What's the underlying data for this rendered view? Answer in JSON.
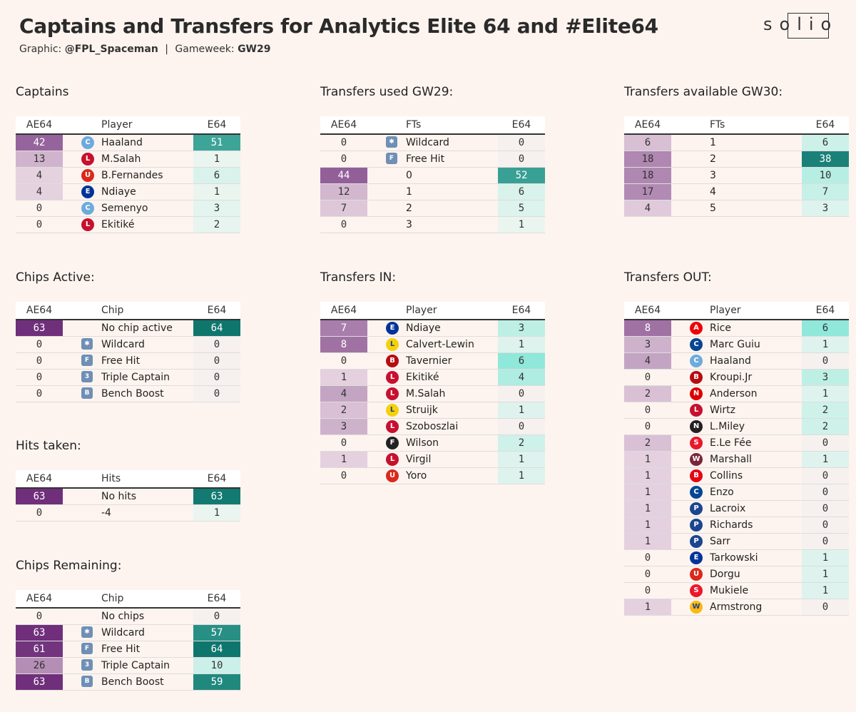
{
  "title": "Captains and Transfers for Analytics Elite 64 and #Elite64",
  "subtitle": {
    "graphic_label": "Graphic:",
    "author": "@FPL_Spaceman",
    "divider": "|",
    "gameweek_label": "Gameweek:",
    "gameweek": "GW29"
  },
  "logo": "solio",
  "colors": {
    "background": "#fdf4ef",
    "ae_scale_max": "#6e2d7a",
    "e_scale_max": "#0f766e"
  },
  "tables": {
    "captains": {
      "title": "Captains",
      "headers": [
        "AE64",
        "Player",
        "E64"
      ],
      "rows": [
        {
          "ae": "42",
          "label": "Haaland",
          "e": "51",
          "icon": "man-city-crest-icon"
        },
        {
          "ae": "13",
          "label": "M.Salah",
          "e": "1",
          "icon": "liverpool-crest-icon"
        },
        {
          "ae": "4",
          "label": "B.Fernandes",
          "e": "6",
          "icon": "man-utd-crest-icon"
        },
        {
          "ae": "4",
          "label": "Ndiaye",
          "e": "1",
          "icon": "everton-crest-icon"
        },
        {
          "ae": "0",
          "label": "Semenyo",
          "e": "3",
          "icon": "man-city-crest-icon"
        },
        {
          "ae": "0",
          "label": "Ekitiké",
          "e": "2",
          "icon": "liverpool-crest-icon"
        }
      ]
    },
    "transfers_used": {
      "title": "Transfers used GW29:",
      "headers": [
        "AE64",
        "FTs",
        "E64"
      ],
      "rows": [
        {
          "ae": "0",
          "label": "Wildcard",
          "e": "0",
          "icon": "wildcard-chip-icon"
        },
        {
          "ae": "0",
          "label": "Free Hit",
          "e": "0",
          "icon": "free-hit-chip-icon"
        },
        {
          "ae": "44",
          "label": "0",
          "e": "52",
          "icon": ""
        },
        {
          "ae": "12",
          "label": "1",
          "e": "6",
          "icon": ""
        },
        {
          "ae": "7",
          "label": "2",
          "e": "5",
          "icon": ""
        },
        {
          "ae": "0",
          "label": "3",
          "e": "1",
          "icon": ""
        }
      ]
    },
    "transfers_available": {
      "title": "Transfers available GW30:",
      "headers": [
        "AE64",
        "FTs",
        "E64"
      ],
      "rows": [
        {
          "ae": "6",
          "label": "1",
          "e": "6",
          "icon": ""
        },
        {
          "ae": "18",
          "label": "2",
          "e": "38",
          "icon": ""
        },
        {
          "ae": "18",
          "label": "3",
          "e": "10",
          "icon": ""
        },
        {
          "ae": "17",
          "label": "4",
          "e": "7",
          "icon": ""
        },
        {
          "ae": "4",
          "label": "5",
          "e": "3",
          "icon": ""
        }
      ]
    },
    "chips_active": {
      "title": "Chips Active:",
      "headers": [
        "AE64",
        "Chip",
        "E64"
      ],
      "rows": [
        {
          "ae": "63",
          "label": "No chip active",
          "e": "64",
          "icon": ""
        },
        {
          "ae": "0",
          "label": "Wildcard",
          "e": "0",
          "icon": "wildcard-chip-icon"
        },
        {
          "ae": "0",
          "label": "Free Hit",
          "e": "0",
          "icon": "free-hit-chip-icon"
        },
        {
          "ae": "0",
          "label": "Triple Captain",
          "e": "0",
          "icon": "triple-captain-chip-icon"
        },
        {
          "ae": "0",
          "label": "Bench Boost",
          "e": "0",
          "icon": "bench-boost-chip-icon"
        }
      ]
    },
    "hits_taken": {
      "title": "Hits taken:",
      "headers": [
        "AE64",
        "Hits",
        "E64"
      ],
      "rows": [
        {
          "ae": "63",
          "label": "No hits",
          "e": "63",
          "icon": ""
        },
        {
          "ae": "0",
          "label": "-4",
          "e": "1",
          "icon": ""
        }
      ]
    },
    "chips_remaining": {
      "title": "Chips Remaining:",
      "headers": [
        "AE64",
        "Chip",
        "E64"
      ],
      "rows": [
        {
          "ae": "0",
          "label": "No chips",
          "e": "0",
          "icon": ""
        },
        {
          "ae": "63",
          "label": "Wildcard",
          "e": "57",
          "icon": "wildcard-chip-icon"
        },
        {
          "ae": "61",
          "label": "Free Hit",
          "e": "64",
          "icon": "free-hit-chip-icon"
        },
        {
          "ae": "26",
          "label": "Triple Captain",
          "e": "10",
          "icon": "triple-captain-chip-icon"
        },
        {
          "ae": "63",
          "label": "Bench Boost",
          "e": "59",
          "icon": "bench-boost-chip-icon"
        }
      ]
    },
    "transfers_in": {
      "title": "Transfers IN:",
      "headers": [
        "AE64",
        "Player",
        "E64"
      ],
      "rows": [
        {
          "ae": "7",
          "label": "Ndiaye",
          "e": "3",
          "icon": "everton-crest-icon"
        },
        {
          "ae": "8",
          "label": "Calvert-Lewin",
          "e": "1",
          "icon": "leeds-crest-icon"
        },
        {
          "ae": "0",
          "label": "Tavernier",
          "e": "6",
          "icon": "bournemouth-crest-icon"
        },
        {
          "ae": "1",
          "label": "Ekitiké",
          "e": "4",
          "icon": "liverpool-crest-icon"
        },
        {
          "ae": "4",
          "label": "M.Salah",
          "e": "0",
          "icon": "liverpool-crest-icon"
        },
        {
          "ae": "2",
          "label": "Struijk",
          "e": "1",
          "icon": "leeds-crest-icon"
        },
        {
          "ae": "3",
          "label": "Szoboszlai",
          "e": "0",
          "icon": "liverpool-crest-icon"
        },
        {
          "ae": "0",
          "label": "Wilson",
          "e": "2",
          "icon": "fulham-crest-icon"
        },
        {
          "ae": "1",
          "label": "Virgil",
          "e": "1",
          "icon": "liverpool-crest-icon"
        },
        {
          "ae": "0",
          "label": "Yoro",
          "e": "1",
          "icon": "man-utd-crest-icon"
        }
      ]
    },
    "transfers_out": {
      "title": "Transfers OUT:",
      "headers": [
        "AE64",
        "Player",
        "E64"
      ],
      "rows": [
        {
          "ae": "8",
          "label": "Rice",
          "e": "6",
          "icon": "arsenal-crest-icon"
        },
        {
          "ae": "3",
          "label": "Marc Guiu",
          "e": "1",
          "icon": "chelsea-crest-icon"
        },
        {
          "ae": "4",
          "label": "Haaland",
          "e": "0",
          "icon": "man-city-crest-icon"
        },
        {
          "ae": "0",
          "label": "Kroupi.Jr",
          "e": "3",
          "icon": "bournemouth-crest-icon"
        },
        {
          "ae": "2",
          "label": "Anderson",
          "e": "1",
          "icon": "nottm-forest-crest-icon"
        },
        {
          "ae": "0",
          "label": "Wirtz",
          "e": "2",
          "icon": "liverpool-crest-icon"
        },
        {
          "ae": "0",
          "label": "L.Miley",
          "e": "2",
          "icon": "newcastle-crest-icon"
        },
        {
          "ae": "2",
          "label": "E.Le Fée",
          "e": "0",
          "icon": "sunderland-crest-icon"
        },
        {
          "ae": "1",
          "label": "Marshall",
          "e": "1",
          "icon": "west-ham-crest-icon"
        },
        {
          "ae": "1",
          "label": "Collins",
          "e": "0",
          "icon": "brentford-crest-icon"
        },
        {
          "ae": "1",
          "label": "Enzo",
          "e": "0",
          "icon": "chelsea-crest-icon"
        },
        {
          "ae": "1",
          "label": "Lacroix",
          "e": "0",
          "icon": "crystal-palace-crest-icon"
        },
        {
          "ae": "1",
          "label": "Richards",
          "e": "0",
          "icon": "crystal-palace-crest-icon"
        },
        {
          "ae": "1",
          "label": "Sarr",
          "e": "0",
          "icon": "crystal-palace-crest-icon"
        },
        {
          "ae": "0",
          "label": "Tarkowski",
          "e": "1",
          "icon": "everton-crest-icon"
        },
        {
          "ae": "0",
          "label": "Dorgu",
          "e": "1",
          "icon": "man-utd-crest-icon"
        },
        {
          "ae": "0",
          "label": "Mukiele",
          "e": "1",
          "icon": "sunderland-crest-icon"
        },
        {
          "ae": "1",
          "label": "Armstrong",
          "e": "0",
          "icon": "wolves-crest-icon"
        }
      ]
    }
  }
}
